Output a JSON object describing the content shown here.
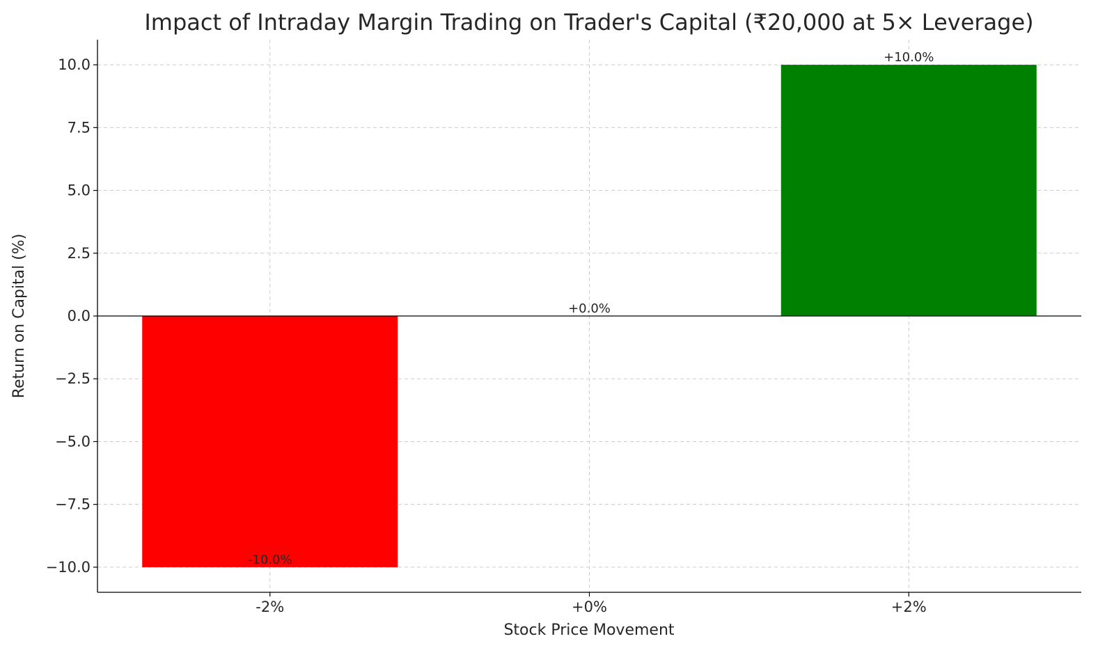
{
  "chart_data": {
    "type": "bar",
    "title": "Impact of Intraday Margin Trading on Trader's Capital (₹20,000 at 5× Leverage)",
    "xlabel": "Stock Price Movement",
    "ylabel": "Return on Capital (%)",
    "categories": [
      "-2%",
      "+0%",
      "+2%"
    ],
    "values": [
      -10.0,
      0.0,
      10.0
    ],
    "data_labels": [
      "-10.0%",
      "+0.0%",
      "+10.0%"
    ],
    "colors": [
      "#ff0000",
      "#ff0000",
      "#008000"
    ],
    "ylim": [
      -11,
      11
    ],
    "yticks": [
      -10.0,
      -7.5,
      -5.0,
      -2.5,
      0.0,
      2.5,
      5.0,
      7.5,
      10.0
    ],
    "ytick_labels": [
      "−10.0",
      "−7.5",
      "−5.0",
      "−2.5",
      "0.0",
      "2.5",
      "5.0",
      "7.5",
      "10.0"
    ],
    "grid": true,
    "zero_line": true
  }
}
